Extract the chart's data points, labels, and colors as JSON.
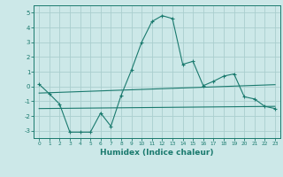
{
  "xlabel": "Humidex (Indice chaleur)",
  "background_color": "#cce8e8",
  "grid_color": "#aacece",
  "line_color": "#1a7a6e",
  "xlim": [
    -0.5,
    23.5
  ],
  "ylim": [
    -3.5,
    5.5
  ],
  "yticks": [
    -3,
    -2,
    -1,
    0,
    1,
    2,
    3,
    4,
    5
  ],
  "xticks": [
    0,
    1,
    2,
    3,
    4,
    5,
    6,
    7,
    8,
    9,
    10,
    11,
    12,
    13,
    14,
    15,
    16,
    17,
    18,
    19,
    20,
    21,
    22,
    23
  ],
  "line1_x": [
    0,
    1,
    2,
    3,
    4,
    5,
    6,
    7,
    8,
    9,
    10,
    11,
    12,
    13,
    14,
    15,
    16,
    17,
    18,
    19,
    20,
    21,
    22,
    23
  ],
  "line1_y": [
    0.15,
    -0.5,
    -1.2,
    -3.1,
    -3.1,
    -3.1,
    -1.8,
    -2.7,
    -0.6,
    1.1,
    3.0,
    4.4,
    4.8,
    4.6,
    1.5,
    1.7,
    0.05,
    0.35,
    0.7,
    0.85,
    -0.7,
    -0.85,
    -1.35,
    -1.5
  ],
  "line2_x": [
    0,
    23
  ],
  "line2_y": [
    -0.45,
    0.12
  ],
  "line3_x": [
    0,
    23
  ],
  "line3_y": [
    -1.5,
    -1.35
  ]
}
